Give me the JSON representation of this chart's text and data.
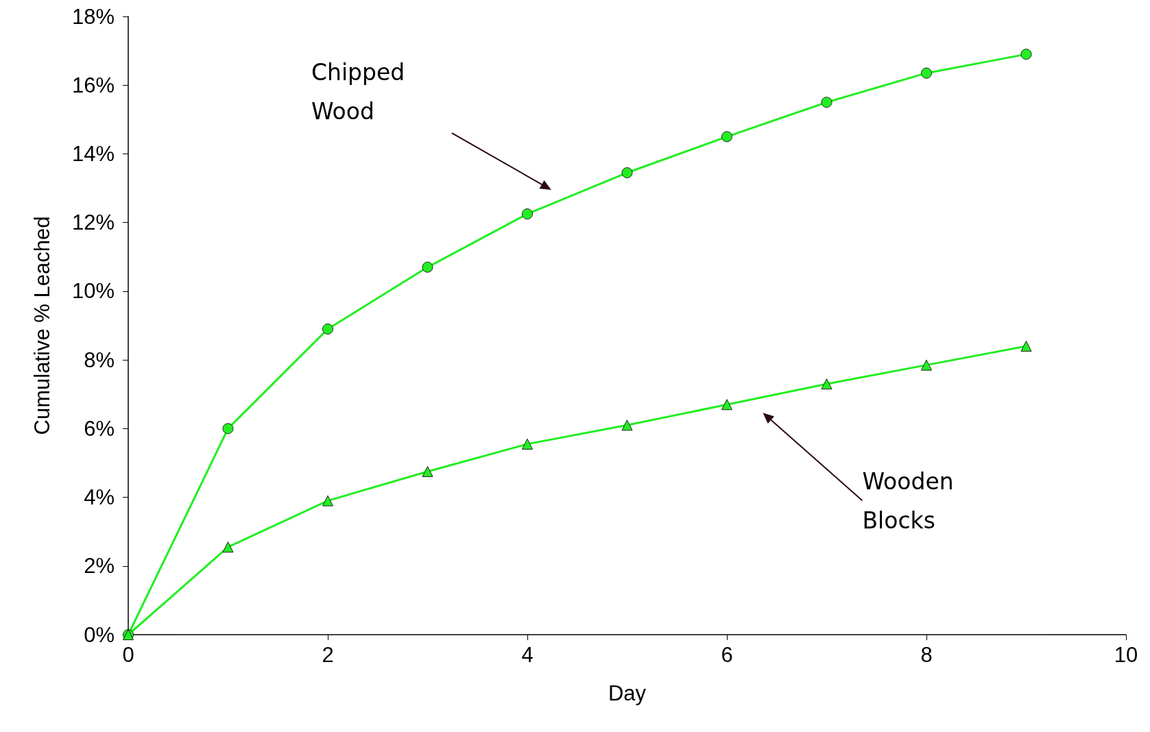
{
  "chart_data": {
    "type": "line",
    "xlabel": "Day",
    "ylabel": "Cumulative % Leached",
    "x": [
      0,
      1,
      2,
      3,
      4,
      5,
      6,
      7,
      8,
      9
    ],
    "series": [
      {
        "color": "#22ee22",
        "marker": "circle",
        "values": [
          0,
          6.0,
          8.9,
          10.7,
          12.25,
          13.45,
          14.5,
          15.5,
          16.35,
          16.9
        ]
      },
      {
        "color": "#22ee22",
        "marker": "triangle",
        "values": [
          0,
          2.55,
          3.9,
          4.75,
          5.55,
          6.1,
          6.7,
          7.3,
          7.85,
          8.4
        ]
      }
    ],
    "annotations": [
      "Chipped Wood",
      "Wooden Blocks"
    ],
    "xlim": [
      0,
      10
    ],
    "xticks": [
      0,
      2,
      4,
      6,
      8,
      10
    ],
    "ylim": [
      0,
      18
    ],
    "yticks": [
      {
        "value": 0,
        "label": "0%"
      },
      {
        "value": 2,
        "label": "2%"
      },
      {
        "value": 4,
        "label": "4%"
      },
      {
        "value": 6,
        "label": "6%"
      },
      {
        "value": 8,
        "label": "8%"
      },
      {
        "value": 10,
        "label": "10%"
      },
      {
        "value": 12,
        "label": "12%"
      },
      {
        "value": 14,
        "label": "14%"
      },
      {
        "value": 16,
        "label": "16%"
      },
      {
        "value": 18,
        "label": "18%"
      }
    ],
    "grid": false,
    "line_style": "solid"
  }
}
